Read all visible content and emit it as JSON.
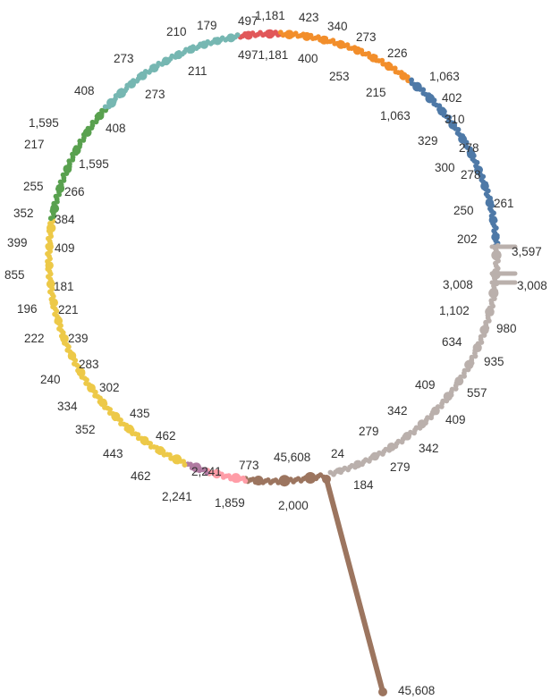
{
  "chart_data": {
    "type": "radial",
    "title": "",
    "xlabel": "",
    "ylabel": "",
    "grid": false,
    "legend": "none",
    "groups": [
      {
        "key": "g-red",
        "color": "#e15759",
        "values": [
          497,
          1181
        ]
      },
      {
        "key": "g-orange",
        "color": "#f28e2b",
        "values": [
          1181,
          400,
          423,
          340,
          273,
          253,
          226,
          215
        ]
      },
      {
        "key": "g-blue",
        "color": "#4e79a7",
        "values": [
          1063,
          1063,
          402,
          310,
          329,
          278,
          300,
          278,
          250,
          261,
          202
        ]
      },
      {
        "key": "g-gray",
        "color": "#bab0ac",
        "values": [
          3597,
          3008,
          3008,
          1102,
          980,
          634,
          935,
          409,
          557,
          342,
          409,
          279,
          342,
          279,
          184,
          24
        ]
      },
      {
        "key": "g-brown",
        "color": "#9c755f",
        "values": [
          45608,
          45608,
          2000
        ]
      },
      {
        "key": "g-pink",
        "color": "#ff9da7",
        "values": [
          1859,
          773
        ]
      },
      {
        "key": "g-purple",
        "color": "#b07aa1",
        "values": [
          2241
        ]
      },
      {
        "key": "g-yellow",
        "color": "#edc948",
        "values": [
          2241,
          462,
          462,
          443,
          435,
          352,
          334,
          302,
          283,
          240,
          239,
          222,
          221,
          196,
          181,
          855
        ]
      },
      {
        "key": "g-green",
        "color": "#59a14f",
        "values": [
          409,
          399,
          384,
          352,
          266,
          255
        ]
      },
      {
        "key": "g-teal",
        "color": "#76b7b2",
        "values": [
          1595,
          1595,
          217,
          408,
          408,
          273,
          273,
          211,
          210,
          179,
          497
        ]
      }
    ],
    "data_labels": [
      {
        "text": "1,181",
        "group": "g-red"
      },
      {
        "text": "497",
        "group": "g-red"
      },
      {
        "text": "4971,181",
        "group": "g-red"
      },
      {
        "text": "423",
        "group": "g-orange"
      },
      {
        "text": "340",
        "group": "g-orange"
      },
      {
        "text": "273",
        "group": "g-orange"
      },
      {
        "text": "400",
        "group": "g-orange"
      },
      {
        "text": "226",
        "group": "g-orange"
      },
      {
        "text": "253",
        "group": "g-orange"
      },
      {
        "text": "215",
        "group": "g-orange"
      },
      {
        "text": "1,063",
        "group": "g-blue"
      },
      {
        "text": "402",
        "group": "g-blue"
      },
      {
        "text": "1,063",
        "group": "g-blue"
      },
      {
        "text": "310",
        "group": "g-blue"
      },
      {
        "text": "329",
        "group": "g-blue"
      },
      {
        "text": "278",
        "group": "g-blue"
      },
      {
        "text": "300",
        "group": "g-blue"
      },
      {
        "text": "278",
        "group": "g-blue"
      },
      {
        "text": "250",
        "group": "g-blue"
      },
      {
        "text": "261",
        "group": "g-blue"
      },
      {
        "text": "202",
        "group": "g-blue"
      },
      {
        "text": "3,597",
        "group": "g-gray"
      },
      {
        "text": "3,008",
        "group": "g-gray"
      },
      {
        "text": "3,008",
        "group": "g-gray"
      },
      {
        "text": "1,102",
        "group": "g-gray"
      },
      {
        "text": "980",
        "group": "g-gray"
      },
      {
        "text": "634",
        "group": "g-gray"
      },
      {
        "text": "935",
        "group": "g-gray"
      },
      {
        "text": "409",
        "group": "g-gray"
      },
      {
        "text": "557",
        "group": "g-gray"
      },
      {
        "text": "342",
        "group": "g-gray"
      },
      {
        "text": "409",
        "group": "g-gray"
      },
      {
        "text": "279",
        "group": "g-gray"
      },
      {
        "text": "342",
        "group": "g-gray"
      },
      {
        "text": "279",
        "group": "g-gray"
      },
      {
        "text": "184",
        "group": "g-gray"
      },
      {
        "text": "24",
        "group": "g-gray"
      },
      {
        "text": "45,608",
        "group": "g-brown"
      },
      {
        "text": "2,000",
        "group": "g-brown"
      },
      {
        "text": "45,608",
        "group": "g-brown"
      },
      {
        "text": "773",
        "group": "g-pink"
      },
      {
        "text": "1,859",
        "group": "g-pink"
      },
      {
        "text": "2,241",
        "group": "g-purple"
      },
      {
        "text": "2,241",
        "group": "g-yellow"
      },
      {
        "text": "462",
        "group": "g-yellow"
      },
      {
        "text": "462",
        "group": "g-yellow"
      },
      {
        "text": "435",
        "group": "g-yellow"
      },
      {
        "text": "443",
        "group": "g-yellow"
      },
      {
        "text": "352",
        "group": "g-yellow"
      },
      {
        "text": "302",
        "group": "g-yellow"
      },
      {
        "text": "334",
        "group": "g-yellow"
      },
      {
        "text": "240",
        "group": "g-yellow"
      },
      {
        "text": "283",
        "group": "g-yellow"
      },
      {
        "text": "239",
        "group": "g-yellow"
      },
      {
        "text": "222",
        "group": "g-yellow"
      },
      {
        "text": "221",
        "group": "g-yellow"
      },
      {
        "text": "196",
        "group": "g-yellow"
      },
      {
        "text": "181",
        "group": "g-yellow"
      },
      {
        "text": "855",
        "group": "g-yellow"
      },
      {
        "text": "409",
        "group": "g-green"
      },
      {
        "text": "399",
        "group": "g-green"
      },
      {
        "text": "384",
        "group": "g-green"
      },
      {
        "text": "352",
        "group": "g-green"
      },
      {
        "text": "266",
        "group": "g-green"
      },
      {
        "text": "255",
        "group": "g-green"
      },
      {
        "text": "1,595",
        "group": "g-teal"
      },
      {
        "text": "217",
        "group": "g-teal"
      },
      {
        "text": "1,595",
        "group": "g-teal"
      },
      {
        "text": "408",
        "group": "g-teal"
      },
      {
        "text": "408",
        "group": "g-teal"
      },
      {
        "text": "273",
        "group": "g-teal"
      },
      {
        "text": "273",
        "group": "g-teal"
      },
      {
        "text": "211",
        "group": "g-teal"
      },
      {
        "text": "210",
        "group": "g-teal"
      },
      {
        "text": "179",
        "group": "g-teal"
      }
    ]
  }
}
